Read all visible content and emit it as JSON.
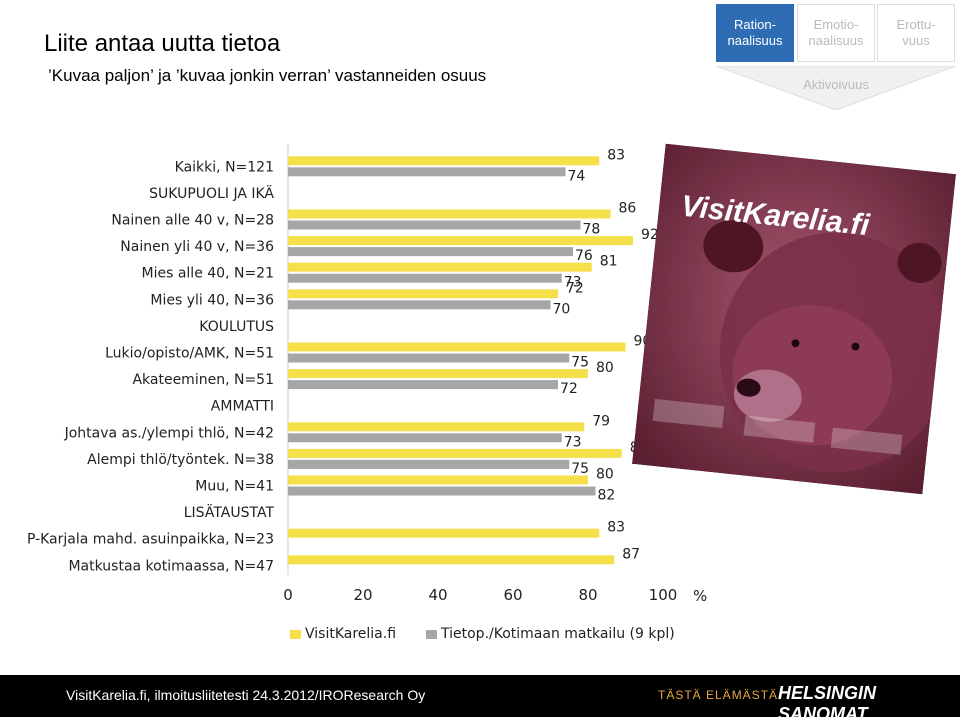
{
  "header": {
    "title": "Liite antaa uutta tietoa",
    "subtitle": "’Kuvaa paljon’ ja ’kuvaa jonkin verran’ vastanneiden osuus"
  },
  "tabs": [
    {
      "label": "Ration-\nnaalisuus",
      "active": true
    },
    {
      "label": "Emotio-\nnaalisuus",
      "active": false
    },
    {
      "label": "Erottu-\nvuus",
      "active": false
    }
  ],
  "aktivoivuus_label": "Aktivoivuus",
  "chart_data": {
    "type": "bar",
    "orientation": "horizontal",
    "categories": [
      "Kaikki, N=121",
      "SUKUPUOLI JA IKÄ",
      "Nainen alle 40 v, N=28",
      "Nainen yli 40 v, N=36",
      "Mies alle 40, N=21",
      "Mies yli 40, N=36",
      "KOULUTUS",
      "Lukio/opisto/AMK, N=51",
      "Akateeminen, N=51",
      "AMMATTI",
      "Johtava as./ylempi thlö, N=42",
      "Alempi thlö/työntek. N=38",
      "Muu, N=41",
      "LISÄTAUSTAT",
      "P-Karjala mahd. asuinpaikka, N=23",
      "Matkustaa kotimaassa, N=47"
    ],
    "series": [
      {
        "name": "VisitKarelia.fi",
        "color": "#f5e04a",
        "values": [
          83,
          null,
          86,
          92,
          81,
          72,
          null,
          90,
          80,
          null,
          79,
          89,
          80,
          null,
          83,
          87
        ]
      },
      {
        "name": "Tietop./Kotimaan matkailu (9 kpl)",
        "color": "#a6a6a6",
        "values": [
          74,
          null,
          78,
          76,
          73,
          70,
          null,
          75,
          72,
          null,
          73,
          75,
          82,
          null,
          null,
          null
        ]
      }
    ],
    "xlim": [
      0,
      100
    ],
    "xticks": [
      0,
      20,
      40,
      60,
      80,
      100
    ],
    "xunit": "%"
  },
  "magazine": {
    "masthead": "VisitKarelia.fi"
  },
  "footer": {
    "source": "VisitKarelia.fi, ilmoitusliitetesti 24.3.2012/IROResearch Oy",
    "slogan": "TÄSTÄ ELÄMÄSTÄ.",
    "brand": "HELSINGIN SANOMAT"
  }
}
